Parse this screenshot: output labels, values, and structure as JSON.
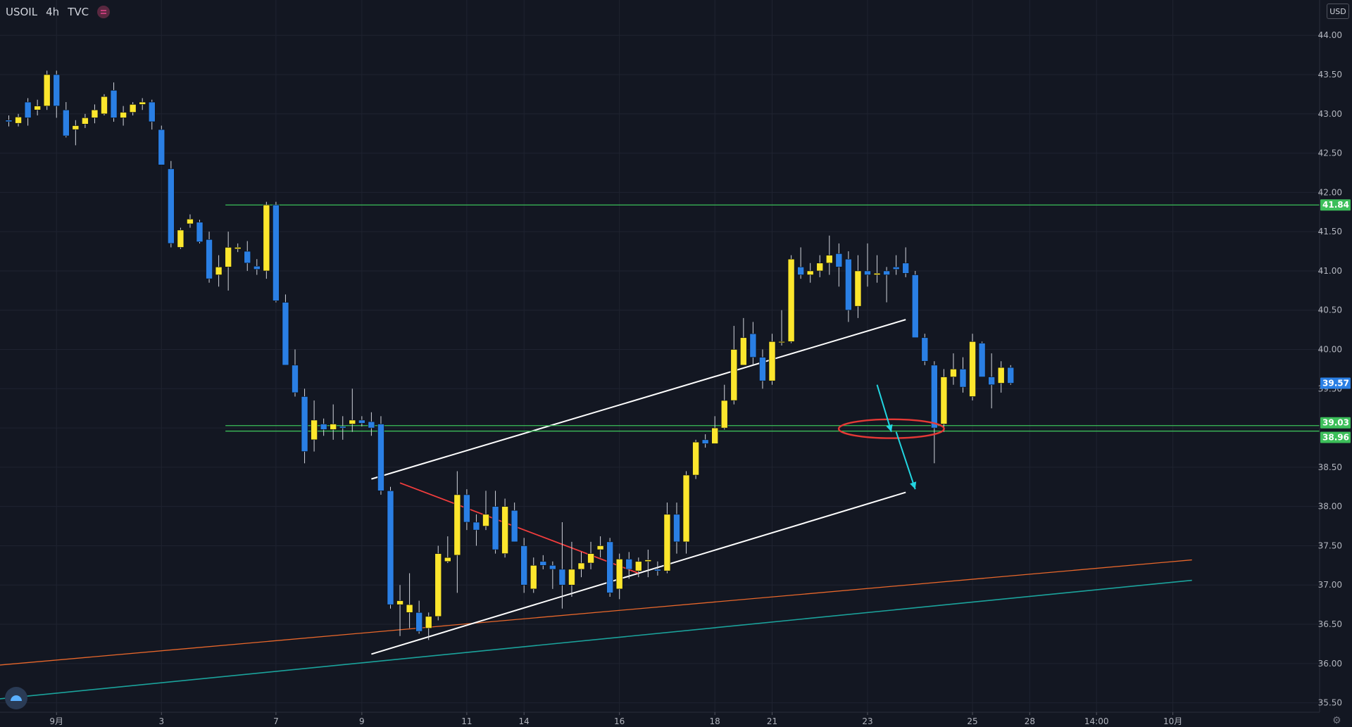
{
  "header": {
    "symbol": "USOIL",
    "interval": "4h",
    "source": "TVC",
    "currency": "USD"
  },
  "icons": {
    "menu": "hamburger-icon",
    "logo": "tradingview-logo-icon",
    "settings": "gear-icon"
  },
  "colors": {
    "background": "#131722",
    "grid": "#1f2330",
    "up_candle": "#fce62d",
    "down_candle": "#2a7fe4",
    "horizontal_level": "#3cbf5a",
    "channel": "#ffffff",
    "triangle_line": "#f23d3d",
    "trend_orange": "#e8672b",
    "trend_teal": "#1ba39c",
    "arrow": "#22d5e0",
    "ellipse": "#e53935",
    "current_price_label": "#2a7fe4"
  },
  "chart_data": {
    "type": "candlestick",
    "y_axis": {
      "range": [
        35.38,
        44.45
      ],
      "ticks": [
        "44.00",
        "43.50",
        "43.00",
        "42.50",
        "42.00",
        "41.50",
        "41.00",
        "40.50",
        "40.00",
        "39.50",
        "38.50",
        "38.00",
        "37.50",
        "37.00",
        "36.50",
        "36.00",
        "35.50"
      ]
    },
    "x_axis": {
      "ticks": [
        {
          "label": "9月",
          "index": 5
        },
        {
          "label": "3",
          "index": 16
        },
        {
          "label": "7",
          "index": 28
        },
        {
          "label": "9",
          "index": 37
        },
        {
          "label": "11",
          "index": 48
        },
        {
          "label": "14",
          "index": 54
        },
        {
          "label": "16",
          "index": 64
        },
        {
          "label": "18",
          "index": 74
        },
        {
          "label": "21",
          "index": 80
        },
        {
          "label": "23",
          "index": 90
        },
        {
          "label": "25",
          "index": 101
        },
        {
          "label": "28",
          "index": 107
        },
        {
          "label": "14:00",
          "index": 114
        },
        {
          "label": "10月",
          "index": 122
        }
      ]
    },
    "price_labels": [
      {
        "label": "41.84",
        "value": 41.84,
        "color": "#3cbf5a"
      },
      {
        "label": "39.03",
        "value": 39.03,
        "color": "#3cbf5a"
      },
      {
        "label": "38.96",
        "value": 38.96,
        "color": "#3cbf5a"
      },
      {
        "label": "39.57",
        "value": 39.57,
        "color": "#2a7fe4"
      }
    ],
    "horizontal_levels": [
      {
        "value": 41.84,
        "start_index": 23
      },
      {
        "value": 39.03,
        "start_index": 23
      },
      {
        "value": 38.96,
        "start_index": 23
      }
    ],
    "candles": [
      [
        42.92,
        42.98,
        42.84,
        42.9
      ],
      [
        42.88,
        43.0,
        42.84,
        42.96
      ],
      [
        43.15,
        43.2,
        42.85,
        42.95
      ],
      [
        43.05,
        43.18,
        42.98,
        43.1
      ],
      [
        43.1,
        43.55,
        43.05,
        43.5
      ],
      [
        43.5,
        43.55,
        42.95,
        43.1
      ],
      [
        43.05,
        43.15,
        42.7,
        42.72
      ],
      [
        42.8,
        42.92,
        42.6,
        42.85
      ],
      [
        42.87,
        43.0,
        42.82,
        42.95
      ],
      [
        42.95,
        43.12,
        42.88,
        43.05
      ],
      [
        43.0,
        43.25,
        42.98,
        43.22
      ],
      [
        43.3,
        43.4,
        42.9,
        42.95
      ],
      [
        42.95,
        43.1,
        42.85,
        43.02
      ],
      [
        43.02,
        43.15,
        42.98,
        43.12
      ],
      [
        43.12,
        43.2,
        43.05,
        43.15
      ],
      [
        43.15,
        43.18,
        42.8,
        42.9
      ],
      [
        42.8,
        42.85,
        42.35,
        42.35
      ],
      [
        42.3,
        42.4,
        41.3,
        41.35
      ],
      [
        41.3,
        41.55,
        41.28,
        41.52
      ],
      [
        41.6,
        41.72,
        41.55,
        41.66
      ],
      [
        41.62,
        41.65,
        41.35,
        41.37
      ],
      [
        41.4,
        41.5,
        40.85,
        40.9
      ],
      [
        40.95,
        41.2,
        40.8,
        41.05
      ],
      [
        41.05,
        41.5,
        40.75,
        41.3
      ],
      [
        41.28,
        41.35,
        41.24,
        41.3
      ],
      [
        41.25,
        41.38,
        41.0,
        41.1
      ],
      [
        41.06,
        41.15,
        40.95,
        41.02
      ],
      [
        41.0,
        41.88,
        40.9,
        41.84
      ],
      [
        41.84,
        41.88,
        40.6,
        40.62
      ],
      [
        40.6,
        40.7,
        39.8,
        39.8
      ],
      [
        39.8,
        40.0,
        39.4,
        39.45
      ],
      [
        39.4,
        39.5,
        38.55,
        38.7
      ],
      [
        38.85,
        39.35,
        38.7,
        39.1
      ],
      [
        39.05,
        39.12,
        38.9,
        38.98
      ],
      [
        38.98,
        39.3,
        38.85,
        39.05
      ],
      [
        39.02,
        39.15,
        38.85,
        39.0
      ],
      [
        39.05,
        39.5,
        38.95,
        39.1
      ],
      [
        39.1,
        39.15,
        39.02,
        39.06
      ],
      [
        39.08,
        39.2,
        38.9,
        39.0
      ],
      [
        39.05,
        39.15,
        38.15,
        38.2
      ],
      [
        38.2,
        38.25,
        36.7,
        36.75
      ],
      [
        36.75,
        37.0,
        36.35,
        36.8
      ],
      [
        36.65,
        37.15,
        36.45,
        36.75
      ],
      [
        36.65,
        36.8,
        36.38,
        36.41
      ],
      [
        36.45,
        36.65,
        36.3,
        36.6
      ],
      [
        36.6,
        37.5,
        36.55,
        37.4
      ],
      [
        37.3,
        37.62,
        37.28,
        37.35
      ],
      [
        37.38,
        38.45,
        36.9,
        38.15
      ],
      [
        38.15,
        38.22,
        37.7,
        37.8
      ],
      [
        37.8,
        37.9,
        37.5,
        37.7
      ],
      [
        37.75,
        38.2,
        37.7,
        37.9
      ],
      [
        38.0,
        38.2,
        37.4,
        37.45
      ],
      [
        37.4,
        38.1,
        37.35,
        38.0
      ],
      [
        37.95,
        38.05,
        37.55,
        37.55
      ],
      [
        37.5,
        37.6,
        36.9,
        37.0
      ],
      [
        36.95,
        37.35,
        36.9,
        37.25
      ],
      [
        37.3,
        37.38,
        37.2,
        37.25
      ],
      [
        37.25,
        37.3,
        36.95,
        37.2
      ],
      [
        37.2,
        37.8,
        36.7,
        37.0
      ],
      [
        37.0,
        37.55,
        36.85,
        37.2
      ],
      [
        37.2,
        37.42,
        37.1,
        37.28
      ],
      [
        37.28,
        37.55,
        37.2,
        37.4
      ],
      [
        37.45,
        37.62,
        37.35,
        37.5
      ],
      [
        37.55,
        37.6,
        36.85,
        36.9
      ],
      [
        36.95,
        37.4,
        36.82,
        37.33
      ],
      [
        37.33,
        37.42,
        37.08,
        37.2
      ],
      [
        37.18,
        37.35,
        37.1,
        37.3
      ],
      [
        37.3,
        37.45,
        37.1,
        37.32
      ],
      [
        37.2,
        37.3,
        37.12,
        37.18
      ],
      [
        37.18,
        38.05,
        37.15,
        37.9
      ],
      [
        37.9,
        38.05,
        37.4,
        37.55
      ],
      [
        37.55,
        38.45,
        37.4,
        38.4
      ],
      [
        38.4,
        38.85,
        38.35,
        38.82
      ],
      [
        38.85,
        38.92,
        38.75,
        38.8
      ],
      [
        38.8,
        39.15,
        38.85,
        39.0
      ],
      [
        39.0,
        39.55,
        38.98,
        39.35
      ],
      [
        39.35,
        40.3,
        39.3,
        40.0
      ],
      [
        39.8,
        40.4,
        39.8,
        40.15
      ],
      [
        40.2,
        40.35,
        39.8,
        39.9
      ],
      [
        39.9,
        40.0,
        39.5,
        39.6
      ],
      [
        39.6,
        40.2,
        39.55,
        40.1
      ],
      [
        40.1,
        40.5,
        40.05,
        40.1
      ],
      [
        40.1,
        41.2,
        40.08,
        41.15
      ],
      [
        41.05,
        41.3,
        40.9,
        40.95
      ],
      [
        40.95,
        41.1,
        40.85,
        41.0
      ],
      [
        41.0,
        41.2,
        40.92,
        41.1
      ],
      [
        41.1,
        41.45,
        40.95,
        41.2
      ],
      [
        41.22,
        41.35,
        40.8,
        41.05
      ],
      [
        41.15,
        41.25,
        40.35,
        40.5
      ],
      [
        40.55,
        41.2,
        40.4,
        41.0
      ],
      [
        41.0,
        41.35,
        40.8,
        40.95
      ],
      [
        40.95,
        41.2,
        40.85,
        40.97
      ],
      [
        41.0,
        41.05,
        40.6,
        40.95
      ],
      [
        41.05,
        41.2,
        40.95,
        41.02
      ],
      [
        41.1,
        41.3,
        40.92,
        40.97
      ],
      [
        40.95,
        41.0,
        40.15,
        40.15
      ],
      [
        40.15,
        40.2,
        39.8,
        39.85
      ],
      [
        39.8,
        39.85,
        38.55,
        39.0
      ],
      [
        39.05,
        39.75,
        38.95,
        39.65
      ],
      [
        39.65,
        39.95,
        39.55,
        39.75
      ],
      [
        39.75,
        39.9,
        39.45,
        39.52
      ],
      [
        39.4,
        40.2,
        39.35,
        40.1
      ],
      [
        40.08,
        40.1,
        39.65,
        39.65
      ],
      [
        39.65,
        39.95,
        39.25,
        39.55
      ],
      [
        39.57,
        39.85,
        39.45,
        39.77
      ],
      [
        39.77,
        39.8,
        39.55,
        39.57
      ]
    ],
    "drawings": {
      "channel_upper": {
        "from": [
          38,
          38.35
        ],
        "to": [
          94,
          40.38
        ]
      },
      "channel_lower": {
        "from": [
          38,
          36.12
        ],
        "to": [
          94,
          38.18
        ]
      },
      "triangle_line": {
        "from": [
          41,
          38.3
        ],
        "to": [
          66,
          37.15
        ]
      },
      "trend_orange": {
        "from": [
          -1,
          35.98
        ],
        "to": [
          124,
          37.32
        ]
      },
      "trend_teal": {
        "from": [
          -1,
          35.55
        ],
        "to": [
          124,
          37.06
        ]
      },
      "arrow_1": {
        "from": [
          91,
          39.55
        ],
        "to": [
          92.5,
          38.95
        ]
      },
      "arrow_2": {
        "from": [
          93,
          38.95
        ],
        "to": [
          95,
          38.22
        ]
      },
      "ellipse": {
        "center": [
          92.5,
          38.99
        ],
        "rx_index": 4.8,
        "ry_price": 0.12
      }
    }
  }
}
